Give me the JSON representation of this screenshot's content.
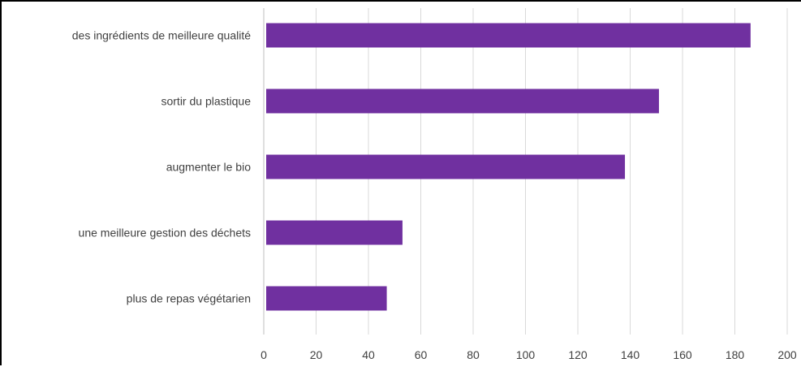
{
  "chart_data": {
    "type": "bar",
    "orientation": "horizontal",
    "categories": [
      "des ingrédients de meilleure qualité",
      "sortir du plastique",
      "augmenter le bio",
      "une meilleure gestion des déchets",
      "plus de repas végétarien"
    ],
    "values": [
      186,
      151,
      138,
      53,
      47
    ],
    "xlim": [
      0,
      200
    ],
    "xticks": [
      "0",
      "20",
      "40",
      "60",
      "80",
      "100",
      "120",
      "140",
      "160",
      "180",
      "200"
    ],
    "grid": true,
    "legend": "none",
    "bar_color": "#7030a0",
    "grid_color": "#d9d9d9"
  }
}
